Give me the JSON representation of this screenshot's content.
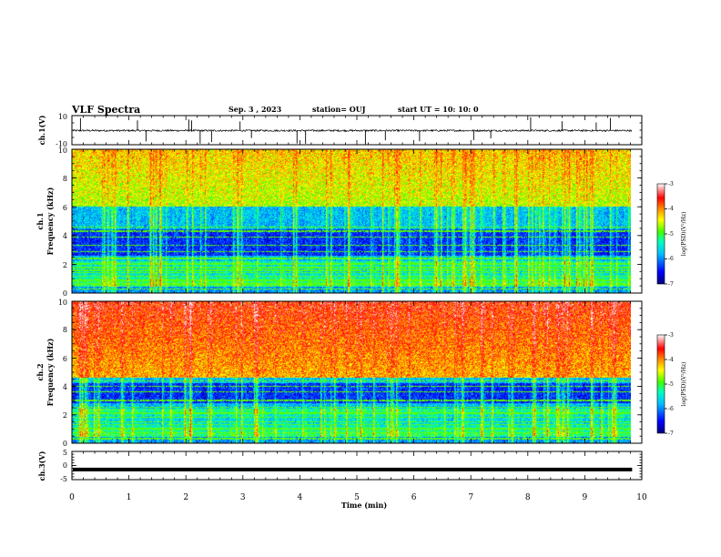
{
  "header": {
    "title": "VLF Spectra",
    "date": "Sep. 3 , 2023",
    "station": "station= OUJ",
    "start": "start UT = 10: 10: 0"
  },
  "chart_data": [
    {
      "type": "line",
      "panel": "ch1-waveform",
      "ylabel": "ch.1(V)",
      "ylim": [
        -10,
        10
      ],
      "yticks": [
        "10",
        "-10"
      ],
      "xlim": [
        0,
        10
      ],
      "baseline": -0.3,
      "noise_amplitude": 0.6,
      "spike_times_min": [
        0.15,
        1.15,
        1.3,
        2.05,
        2.1,
        2.25,
        2.45,
        2.95,
        3.15,
        3.95,
        4.1,
        5.15,
        5.5,
        6.1,
        7.05,
        7.35,
        8.05,
        8.6,
        9.2,
        9.45
      ],
      "series": [
        {
          "color": "#000000"
        }
      ]
    },
    {
      "type": "heatmap",
      "panel": "ch1-spectrogram",
      "ylabel_line1": "ch.1",
      "ylabel_line2": "Frequency (kHz)",
      "ylim": [
        0,
        10
      ],
      "yticks": [
        "0",
        "2",
        "4",
        "6",
        "8",
        "10"
      ],
      "xlim": [
        0,
        9.83
      ],
      "low_band_khz": [
        2.2,
        6.0
      ],
      "dark_band_khz": [
        2.6,
        4.4
      ],
      "persistent_line_khz": [
        0.25,
        0.6,
        0.85,
        1.15,
        1.4,
        1.55,
        1.75,
        2.0,
        2.4,
        2.85,
        3.3,
        3.9,
        4.3,
        4.6
      ],
      "colorbar": {
        "label": "log(PSD)(V²/Hz)",
        "range": [
          -7,
          -3
        ],
        "ticks": [
          "-3",
          "-4",
          "-5",
          "-6",
          "-7"
        ]
      }
    },
    {
      "type": "heatmap",
      "panel": "ch2-spectrogram",
      "ylabel_line1": "ch.2",
      "ylabel_line2": "Frequency (kHz)",
      "ylim": [
        0,
        10
      ],
      "yticks": [
        "0",
        "2",
        "4",
        "6",
        "8",
        "10"
      ],
      "xlim": [
        0,
        9.83
      ],
      "low_band_khz": [
        2.4,
        4.6
      ],
      "dark_band_khz": [
        2.8,
        4.2
      ],
      "persistent_line_khz": [
        0.3,
        0.7,
        1.0,
        1.3,
        1.5,
        1.8,
        2.1,
        2.5,
        3.0,
        3.6,
        4.0,
        4.4
      ],
      "colorbar": {
        "label": "log(PSD)(V²/Hz)",
        "range": [
          -7,
          -3
        ],
        "ticks": [
          "-3",
          "-4",
          "-5",
          "-6",
          "-7"
        ]
      }
    },
    {
      "type": "line",
      "panel": "ch3-waveform",
      "ylabel": "ch.3(V)",
      "ylim": [
        -5,
        5
      ],
      "yticks": [
        "5",
        "0",
        "-5"
      ],
      "xlim": [
        0,
        10
      ],
      "value": -1.4,
      "series": [
        {
          "color": "#000000"
        }
      ]
    }
  ],
  "x_axis": {
    "label": "Time (min)",
    "ticks": [
      "0",
      "1",
      "2",
      "3",
      "4",
      "5",
      "6",
      "7",
      "8",
      "9",
      "10"
    ]
  },
  "colors": {
    "colormap": [
      "#00007f",
      "#0000ff",
      "#0080ff",
      "#00ffff",
      "#00ff80",
      "#80ff00",
      "#ffff00",
      "#ff8000",
      "#ff0000",
      "#ff8080",
      "#ffffff"
    ]
  }
}
